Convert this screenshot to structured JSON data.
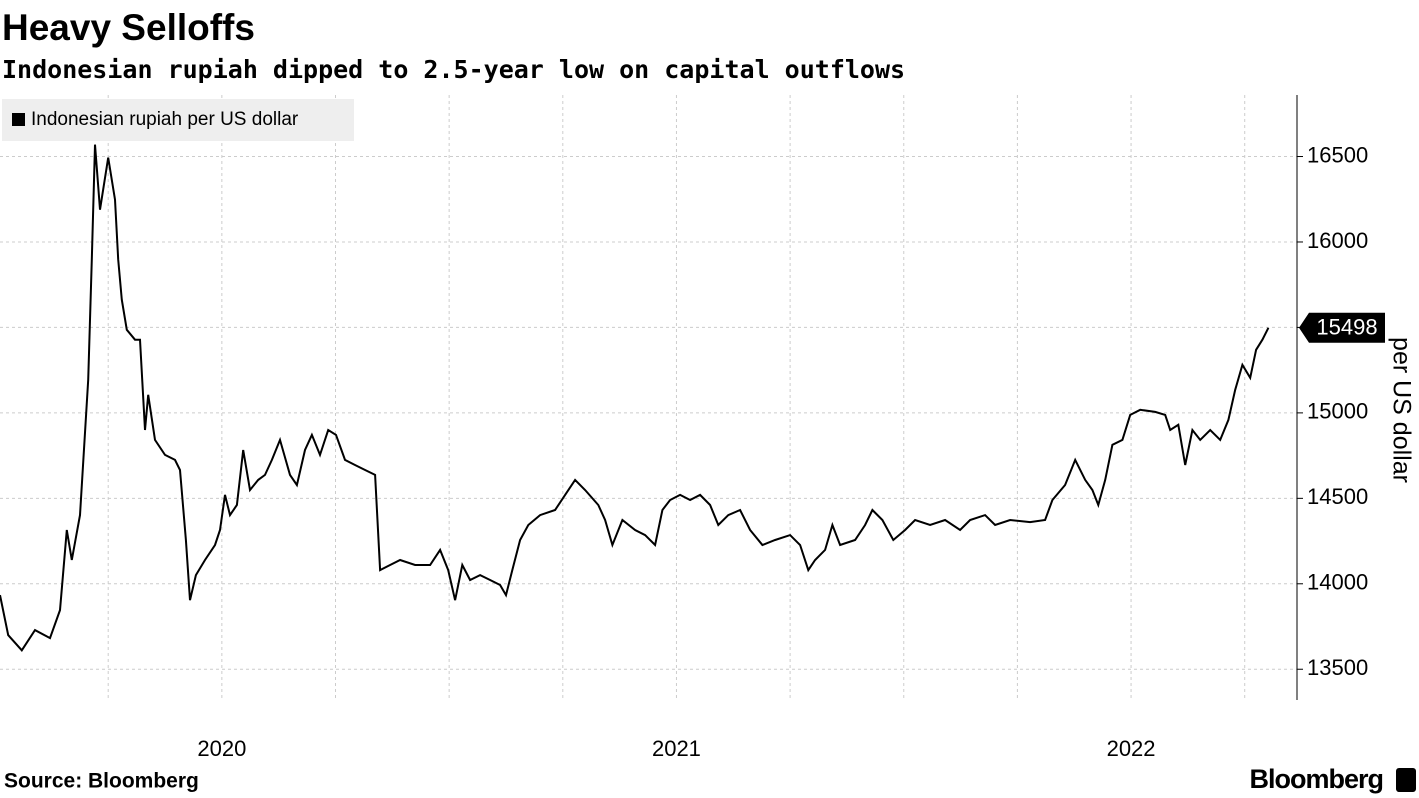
{
  "chart_data": {
    "type": "line",
    "title": "Heavy Selloffs",
    "subtitle": "Indonesian rupiah dipped to 2.5-year low on capital outflows",
    "y_axis_label": "per US dollar",
    "source": "Source: Bloomberg",
    "brand": "Bloomberg",
    "legend_position": "top-left",
    "grid": true,
    "xlim": [
      2019.512,
      2022.365
    ],
    "xticks": [
      2020,
      2021,
      2022
    ],
    "ylim": [
      13320,
      16860
    ],
    "yticks": [
      13500,
      14000,
      14500,
      15000,
      15500,
      16000,
      16500
    ],
    "x": [
      2019.512,
      2019.53,
      2019.56,
      2019.589,
      2019.622,
      2019.644,
      2019.659,
      2019.67,
      2019.688,
      2019.706,
      2019.714,
      2019.721,
      2019.732,
      2019.75,
      2019.765,
      2019.772,
      2019.78,
      2019.791,
      2019.809,
      2019.82,
      2019.831,
      2019.838,
      2019.853,
      2019.875,
      2019.897,
      2019.908,
      2019.921,
      2019.93,
      2019.943,
      2019.963,
      2019.985,
      2019.996,
      2020.007,
      2020.018,
      2020.033,
      2020.047,
      2020.062,
      2020.08,
      2020.095,
      2020.11,
      2020.128,
      2020.15,
      2020.165,
      2020.183,
      2020.198,
      2020.216,
      2020.234,
      2020.251,
      2020.271,
      2020.293,
      2020.315,
      2020.337,
      2020.348,
      2020.37,
      2020.392,
      2020.425,
      2020.458,
      2020.48,
      2020.498,
      2020.513,
      2020.529,
      2020.546,
      2020.568,
      2020.59,
      2020.612,
      2020.625,
      2020.639,
      2020.656,
      2020.674,
      2020.7,
      2020.733,
      2020.755,
      2020.777,
      2020.799,
      2020.828,
      2020.843,
      2020.859,
      2020.881,
      2020.909,
      2020.931,
      2020.953,
      2020.969,
      2020.986,
      2021.008,
      2021.03,
      2021.052,
      2021.074,
      2021.092,
      2021.114,
      2021.14,
      2021.162,
      2021.189,
      2021.217,
      2021.25,
      2021.272,
      2021.29,
      2021.305,
      2021.327,
      2021.343,
      2021.36,
      2021.393,
      2021.415,
      2021.431,
      2021.453,
      2021.477,
      2021.503,
      2021.525,
      2021.558,
      2021.591,
      2021.624,
      2021.646,
      2021.679,
      2021.701,
      2021.734,
      2021.778,
      2021.811,
      2021.827,
      2021.855,
      2021.877,
      2021.899,
      2021.915,
      2021.928,
      2021.943,
      2021.959,
      2021.981,
      2021.998,
      2022.02,
      2022.053,
      2022.075,
      2022.086,
      2022.104,
      2022.119,
      2022.135,
      2022.152,
      2022.174,
      2022.196,
      2022.214,
      2022.229,
      2022.245,
      2022.262,
      2022.275,
      2022.289,
      2022.302
    ],
    "series": [
      {
        "name": "Indonesian rupiah per US dollar",
        "color": "#000000",
        "values": [
          13934,
          13700,
          13611,
          13729,
          13682,
          13846,
          14315,
          14139,
          14402,
          15193,
          15897,
          16570,
          16189,
          16494,
          16248,
          15897,
          15662,
          15486,
          15428,
          15428,
          14900,
          15106,
          14842,
          14754,
          14725,
          14666,
          14256,
          13904,
          14051,
          14139,
          14227,
          14315,
          14520,
          14402,
          14461,
          14783,
          14549,
          14608,
          14637,
          14725,
          14842,
          14637,
          14578,
          14783,
          14871,
          14754,
          14900,
          14871,
          14725,
          14695,
          14666,
          14637,
          14080,
          14110,
          14139,
          14110,
          14110,
          14198,
          14080,
          13904,
          14110,
          14022,
          14051,
          14022,
          13993,
          13934,
          14080,
          14256,
          14344,
          14402,
          14432,
          14520,
          14608,
          14549,
          14461,
          14373,
          14227,
          14373,
          14315,
          14285,
          14227,
          14432,
          14490,
          14520,
          14490,
          14520,
          14461,
          14344,
          14402,
          14432,
          14315,
          14227,
          14256,
          14285,
          14227,
          14080,
          14139,
          14198,
          14344,
          14227,
          14256,
          14344,
          14432,
          14373,
          14256,
          14315,
          14373,
          14344,
          14373,
          14315,
          14373,
          14402,
          14344,
          14373,
          14361,
          14373,
          14490,
          14578,
          14725,
          14608,
          14549,
          14461,
          14608,
          14813,
          14842,
          14988,
          15018,
          15006,
          14988,
          14900,
          14930,
          14695,
          14900,
          14842,
          14900,
          14842,
          14959,
          15135,
          15281,
          15205,
          15369,
          15428,
          15498
        ]
      }
    ]
  }
}
